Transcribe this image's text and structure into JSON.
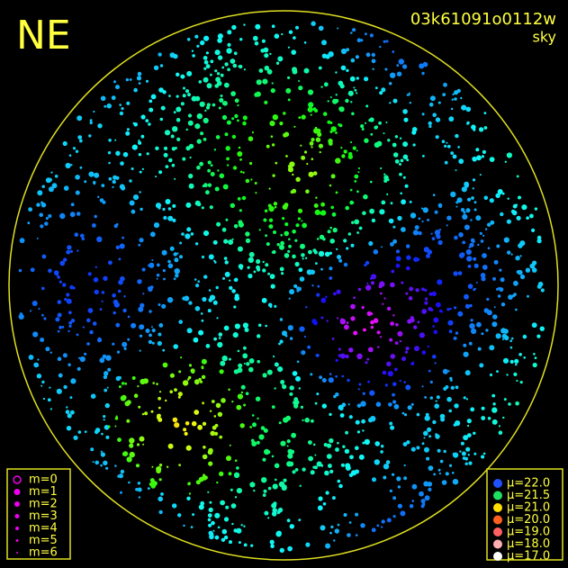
{
  "header": {
    "direction": "NE",
    "frame_id": "03k61091o0112w",
    "mode": "sky"
  },
  "magnitude_legend": {
    "color": "#ee00ee",
    "items": [
      "m=0",
      "m=1",
      "m=2",
      "m=3",
      "m=4",
      "m=5",
      "m=6"
    ]
  },
  "surface_brightness_legend": {
    "items": [
      {
        "label": "μ=22.0",
        "color": "#2050ff"
      },
      {
        "label": "μ=21.5",
        "color": "#20e060"
      },
      {
        "label": "μ=21.0",
        "color": "#ffe000"
      },
      {
        "label": "μ=20.0",
        "color": "#ff6020"
      },
      {
        "label": "μ=19.0",
        "color": "#ff6060"
      },
      {
        "label": "μ=18.0",
        "color": "#ffb0b0"
      },
      {
        "label": "μ=17.0",
        "color": "#ffffff"
      }
    ]
  }
}
